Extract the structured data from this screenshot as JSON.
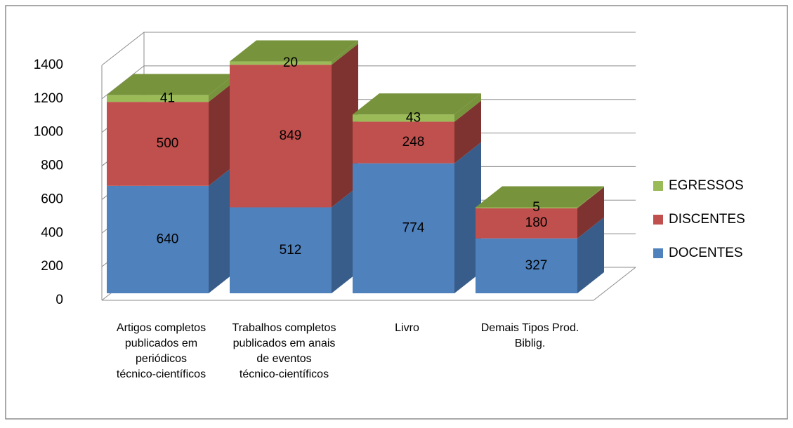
{
  "chart_data": {
    "type": "bar3d_stacked",
    "categories": [
      "Artigos completos publicados em periódicos técnico-científicos",
      "Trabalhos completos publicados em anais de eventos técnico-científicos",
      "Livro",
      "Demais Tipos Prod. Biblig."
    ],
    "series": [
      {
        "name": "DOCENTES",
        "color": "#4f81bd",
        "side": "#385d8a",
        "values": [
          640,
          512,
          774,
          327
        ]
      },
      {
        "name": "DISCENTES",
        "color": "#c0504d",
        "side": "#7f3330",
        "values": [
          500,
          849,
          248,
          180
        ]
      },
      {
        "name": "EGRESSOS",
        "color": "#9bbb59",
        "side": "#77933c",
        "values": [
          41,
          20,
          43,
          5
        ]
      }
    ],
    "ylim": [
      0,
      1400
    ],
    "yticks": [
      0,
      200,
      400,
      600,
      800,
      1000,
      1200,
      1400
    ],
    "grid": true,
    "legend": "right"
  }
}
